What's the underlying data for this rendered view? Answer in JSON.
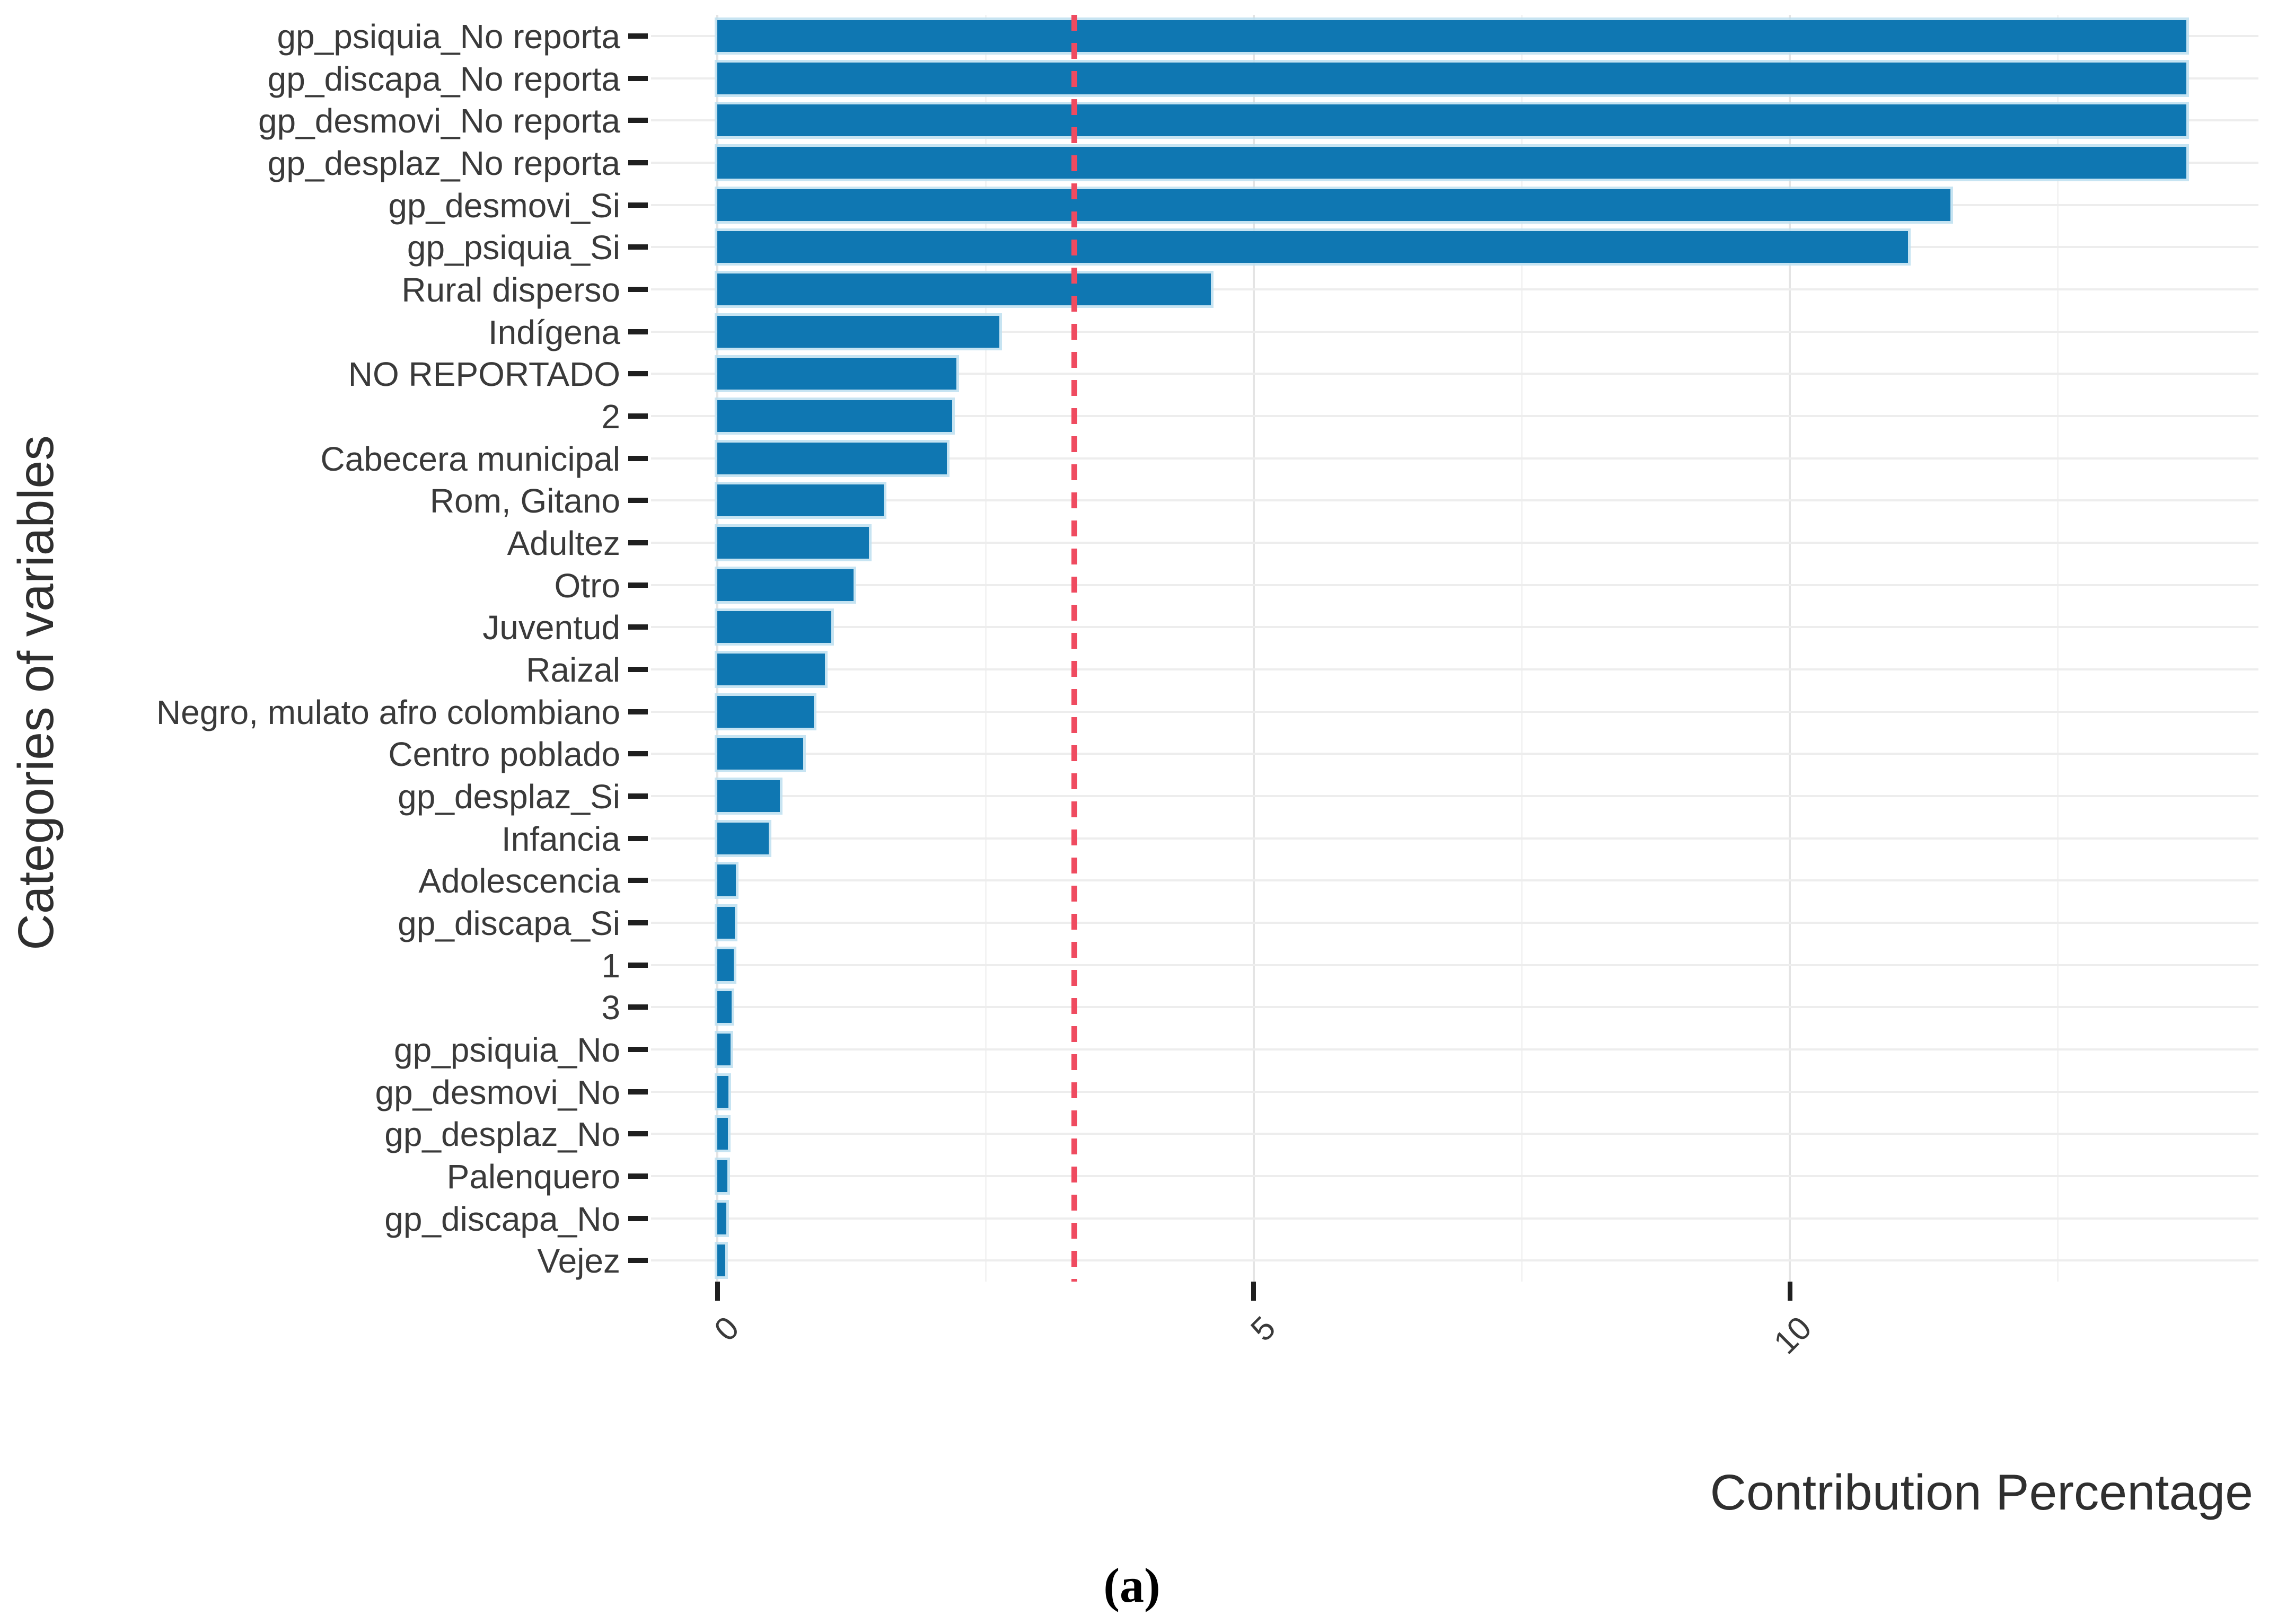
{
  "figure": {
    "caption": "(a)"
  },
  "chart_data": {
    "type": "bar",
    "orientation": "horizontal",
    "title": "",
    "xlabel": "Contribution Percentage",
    "ylabel": "Categories of variables",
    "categories": [
      "gp_psiquia_No reporta",
      "gp_discapa_No reporta",
      "gp_desmovi_No reporta",
      "gp_desplaz_No reporta",
      "gp_desmovi_Si",
      "gp_psiquia_Si",
      "Rural disperso",
      "Indígena",
      "NO REPORTADO",
      "2",
      "Cabecera municipal",
      "Rom, Gitano",
      "Adultez",
      "Otro",
      "Juventud",
      "Raizal",
      "Negro, mulato afro colombiano",
      "Centro poblado",
      "gp_desplaz_Si",
      "Infancia",
      "Adolescencia",
      "gp_discapa_Si",
      "1",
      "3",
      "gp_psiquia_No",
      "gp_desmovi_No",
      "gp_desplaz_No",
      "Palenquero",
      "gp_discapa_No",
      "Vejez"
    ],
    "values": [
      13.7,
      13.7,
      13.7,
      13.7,
      11.5,
      11.1,
      4.6,
      2.63,
      2.23,
      2.19,
      2.14,
      1.55,
      1.41,
      1.27,
      1.06,
      1.0,
      0.9,
      0.8,
      0.58,
      0.48,
      0.17,
      0.16,
      0.15,
      0.13,
      0.12,
      0.1,
      0.095,
      0.09,
      0.08,
      0.07
    ],
    "bar_color": "#0f77b2",
    "reference_line": {
      "value": 3.33,
      "style": "dashed",
      "color": "#ef4b60",
      "orientation": "vertical"
    },
    "x_axis": {
      "ticks": [
        0,
        5,
        10
      ],
      "tick_labels": [
        "0",
        "5",
        "10"
      ],
      "minor_ticks": [
        2.5,
        7.5,
        12.5
      ],
      "range": [
        -0.62,
        14.37
      ],
      "tick_label_rotation": 45
    },
    "y_axis": {
      "type": "categorical"
    },
    "grid": true,
    "legend": false,
    "background": "#ffffff"
  }
}
